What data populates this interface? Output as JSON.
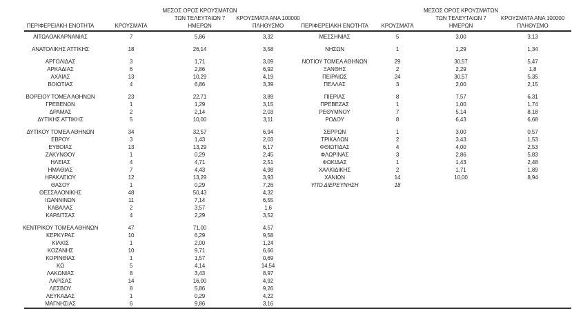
{
  "page": {
    "background_color": "#ffffff",
    "text_color": "#262626",
    "rule_color": "#2b2b2b"
  },
  "table": {
    "column_headers": [
      {
        "id": "region",
        "lines": [
          "ΠΕΡΙΦΕΡΕΙΑΚΗ ΕΝΟΤΗΤΑ"
        ]
      },
      {
        "id": "cases",
        "lines": [
          "ΚΡΟΥΣΜΑΤΑ"
        ]
      },
      {
        "id": "avg7",
        "lines": [
          "ΜΕΣΟΣ ΟΡΟΣ ΚΡΟΥΣΜΑΤΩΝ",
          "ΤΩΝ ΤΕΛΕΥΤΑΙΩΝ 7",
          "ΗΜΕΡΩΝ"
        ]
      },
      {
        "id": "per100k",
        "lines": [
          "ΚΡΟΥΣΜΑΤΑ ΑΝΑ 100000",
          "ΠΛΗΘΥΣΜΟ"
        ]
      }
    ],
    "rows": [
      {
        "left": {
          "name": "ΑΙΤΩΛΟΑΚΑΡΝΑΝΙΑΣ",
          "cases": "7",
          "avg7": "5,86",
          "per100k": "3,32"
        },
        "right": {
          "name": "ΜΕΣΣΗΝΙΑΣ",
          "cases": "5",
          "avg7": "3,00",
          "per100k": "3,13"
        }
      },
      {
        "gap": true
      },
      {
        "left": {
          "name": "ΑΝΑΤΟΛΙΚΗΣ ΑΤΤΙΚΗΣ",
          "cases": "18",
          "avg7": "26,14",
          "per100k": "3,58"
        },
        "right": {
          "name": "ΝΗΣΩΝ",
          "cases": "1",
          "avg7": "1,29",
          "per100k": "1,34"
        }
      },
      {
        "gap": true
      },
      {
        "left": {
          "name": "ΑΡΓΟΛΙΔΑΣ",
          "cases": "3",
          "avg7": "1,71",
          "per100k": "3,09"
        },
        "right": {
          "name": "ΝΟΤΙΟΥ ΤΟΜΕΑ ΑΘΗΝΩΝ",
          "cases": "29",
          "avg7": "30,57",
          "per100k": "5,47"
        }
      },
      {
        "left": {
          "name": "ΑΡΚΑΔΙΑΣ",
          "cases": "6",
          "avg7": "2,86",
          "per100k": "6,92"
        },
        "right": {
          "name": "ΞΑΝΘΗΣ",
          "cases": "2",
          "avg7": "2,29",
          "per100k": "1,8"
        }
      },
      {
        "left": {
          "name": "ΑΧΑΪΑΣ",
          "cases": "13",
          "avg7": "10,29",
          "per100k": "4,19"
        },
        "right": {
          "name": "ΠΕΙΡΑΙΩΣ",
          "cases": "24",
          "avg7": "30,57",
          "per100k": "5,35"
        }
      },
      {
        "left": {
          "name": "ΒΟΙΩΤΙΑΣ",
          "cases": "4",
          "avg7": "6,86",
          "per100k": "3,39"
        },
        "right": {
          "name": "ΠΕΛΛΑΣ",
          "cases": "3",
          "avg7": "2,00",
          "per100k": "2,15"
        }
      },
      {
        "gap": true
      },
      {
        "left": {
          "name": "ΒΟΡΕΙΟΥ ΤΟΜΕΑ ΑΘΗΝΩΝ",
          "cases": "23",
          "avg7": "22,71",
          "per100k": "3,89"
        },
        "right": {
          "name": "ΠΙΕΡΙΑΣ",
          "cases": "8",
          "avg7": "7,57",
          "per100k": "6,31"
        }
      },
      {
        "left": {
          "name": "ΓΡΕΒΕΝΩΝ",
          "cases": "1",
          "avg7": "1,29",
          "per100k": "3,15"
        },
        "right": {
          "name": "ΠΡΕΒΕΖΑΣ",
          "cases": "1",
          "avg7": "1,00",
          "per100k": "1,74"
        }
      },
      {
        "left": {
          "name": "ΔΡΑΜΑΣ",
          "cases": "2",
          "avg7": "2,14",
          "per100k": "2,03"
        },
        "right": {
          "name": "ΡΕΘΥΜΝΟΥ",
          "cases": "7",
          "avg7": "5,14",
          "per100k": "8,18"
        }
      },
      {
        "left": {
          "name": "ΔΥΤΙΚΗΣ ΑΤΤΙΚΗΣ",
          "cases": "5",
          "avg7": "10,00",
          "per100k": "3,11"
        },
        "right": {
          "name": "ΡΟΔΟΥ",
          "cases": "8",
          "avg7": "6,43",
          "per100k": "6,68"
        }
      },
      {
        "gap": true
      },
      {
        "left": {
          "name": "ΔΥΤΙΚΟΥ ΤΟΜΕΑ ΑΘΗΝΩΝ",
          "cases": "34",
          "avg7": "32,57",
          "per100k": "6,94"
        },
        "right": {
          "name": "ΣΕΡΡΩΝ",
          "cases": "1",
          "avg7": "3,00",
          "per100k": "0,57"
        }
      },
      {
        "left": {
          "name": "ΕΒΡΟΥ",
          "cases": "3",
          "avg7": "1,43",
          "per100k": "2,03"
        },
        "right": {
          "name": "ΤΡΙΚΑΛΩΝ",
          "cases": "2",
          "avg7": "3,43",
          "per100k": "1,53"
        }
      },
      {
        "left": {
          "name": "ΕΥΒΟΙΑΣ",
          "cases": "13",
          "avg7": "13,29",
          "per100k": "6,17"
        },
        "right": {
          "name": "ΦΘΙΩΤΙΔΑΣ",
          "cases": "4",
          "avg7": "4,00",
          "per100k": "2,53"
        }
      },
      {
        "left": {
          "name": "ΖΑΚΥΝΘΟΥ",
          "cases": "1",
          "avg7": "0,29",
          "per100k": "2,45"
        },
        "right": {
          "name": "ΦΛΩΡΙΝΑΣ",
          "cases": "3",
          "avg7": "2,86",
          "per100k": "5,83"
        }
      },
      {
        "left": {
          "name": "ΗΛΕΙΑΣ",
          "cases": "4",
          "avg7": "4,71",
          "per100k": "2,51"
        },
        "right": {
          "name": "ΦΩΚΙΔΑΣ",
          "cases": "1",
          "avg7": "1,43",
          "per100k": "2,48"
        }
      },
      {
        "left": {
          "name": "ΗΜΑΘΙΑΣ",
          "cases": "7",
          "avg7": "4,43",
          "per100k": "4,98"
        },
        "right": {
          "name": "ΧΑΛΚΙΔΙΚΗΣ",
          "cases": "2",
          "avg7": "1,71",
          "per100k": "1,89"
        }
      },
      {
        "left": {
          "name": "ΗΡΑΚΛΕΙΟΥ",
          "cases": "12",
          "avg7": "13,29",
          "per100k": "3,93"
        },
        "right": {
          "name": "ΧΑΝΙΩΝ",
          "cases": "14",
          "avg7": "10,00",
          "per100k": "8,94"
        }
      },
      {
        "left": {
          "name": "ΘΑΣΟΥ",
          "cases": "1",
          "avg7": "0,29",
          "per100k": "7,26"
        },
        "right": {
          "name": "ΥΠΟ ΔΙΕΡΕΥΝΗΣΗ",
          "cases": "18",
          "avg7": "",
          "per100k": "",
          "italic": true
        }
      },
      {
        "left": {
          "name": "ΘΕΣΣΑΛΟΝΙΚΗΣ",
          "cases": "48",
          "avg7": "50,43",
          "per100k": "4,32"
        }
      },
      {
        "left": {
          "name": "ΙΩΑΝΝΙΝΩΝ",
          "cases": "11",
          "avg7": "7,14",
          "per100k": "6,55"
        }
      },
      {
        "left": {
          "name": "ΚΑΒΑΛΑΣ",
          "cases": "2",
          "avg7": "3,57",
          "per100k": "1,6"
        }
      },
      {
        "left": {
          "name": "ΚΑΡΔΙΤΣΑΣ",
          "cases": "4",
          "avg7": "2,29",
          "per100k": "3,52"
        }
      },
      {
        "gap": true
      },
      {
        "left": {
          "name": "ΚΕΝΤΡΙΚΟΥ ΤΟΜΕΑ ΑΘΗΝΩΝ",
          "cases": "47",
          "avg7": "71,00",
          "per100k": "4,57"
        }
      },
      {
        "left": {
          "name": "ΚΕΡΚΥΡΑΣ",
          "cases": "10",
          "avg7": "6,29",
          "per100k": "9,58"
        }
      },
      {
        "left": {
          "name": "ΚΙΛΚΙΣ",
          "cases": "1",
          "avg7": "2,00",
          "per100k": "1,24"
        }
      },
      {
        "left": {
          "name": "ΚΟΖΑΝΗΣ",
          "cases": "10",
          "avg7": "9,71",
          "per100k": "6,66"
        }
      },
      {
        "left": {
          "name": "ΚΟΡΙΝΘΙΑΣ",
          "cases": "1",
          "avg7": "1,57",
          "per100k": "0,69"
        }
      },
      {
        "left": {
          "name": "ΚΩ",
          "cases": "5",
          "avg7": "4,14",
          "per100k": "14,54"
        }
      },
      {
        "left": {
          "name": "ΛΑΚΩΝΙΑΣ",
          "cases": "8",
          "avg7": "3,43",
          "per100k": "8,97"
        }
      },
      {
        "left": {
          "name": "ΛΑΡΙΣΑΣ",
          "cases": "14",
          "avg7": "16,00",
          "per100k": "4,92"
        }
      },
      {
        "left": {
          "name": "ΛΕΣΒΟΥ",
          "cases": "8",
          "avg7": "5,86",
          "per100k": "9,26"
        }
      },
      {
        "left": {
          "name": "ΛΕΥΚΑΔΑΣ",
          "cases": "1",
          "avg7": "0,29",
          "per100k": "4,22"
        }
      },
      {
        "left": {
          "name": "ΜΑΓΝΗΣΙΑΣ",
          "cases": "6",
          "avg7": "9,86",
          "per100k": "3,16"
        }
      }
    ]
  }
}
